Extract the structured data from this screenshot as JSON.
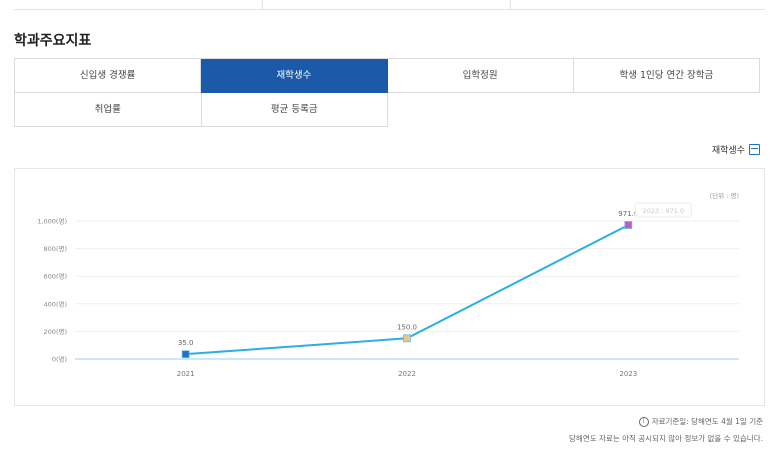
{
  "section_title": "학과주요지표",
  "tabs_row1": [
    "신입생 경쟁률",
    "재학생수",
    "입학정원",
    "학생 1인당 연간 장학금"
  ],
  "tabs_row2": [
    "취업률",
    "평균 등록금"
  ],
  "active_tab": "재학생수",
  "chart_caption": "재학생수",
  "notes": {
    "line1": "자료기준일: 당해연도 4월 1일 기준",
    "line2": "당해연도 자료는 아직 공시되지 않아 정보가 없을 수 있습니다."
  },
  "colors": {
    "active_tab": "#1a5aa8",
    "line": "#29aee6",
    "axis": "#b9e0f4",
    "grid": "#efefef"
  },
  "chart_data": {
    "type": "line",
    "unit_label": "(단위 : 명)",
    "x": [
      "2021",
      "2022",
      "2023"
    ],
    "series": [
      {
        "values": [
          35.0,
          150.0,
          971.0
        ],
        "labels": [
          "35.0",
          "150.0",
          "971.0"
        ]
      }
    ],
    "y_ticks": [
      0,
      200,
      400,
      600,
      800,
      1000
    ],
    "y_tick_labels": [
      "0(명)",
      "200(명)",
      "400(명)",
      "600(명)",
      "800(명)",
      "1,000(명)"
    ],
    "ylim": [
      0,
      1000
    ],
    "grid": true,
    "tooltip": "2023 : 971.0",
    "marker_colors": [
      "#1a73c8",
      "#e8c98a",
      "#c05acb"
    ]
  }
}
